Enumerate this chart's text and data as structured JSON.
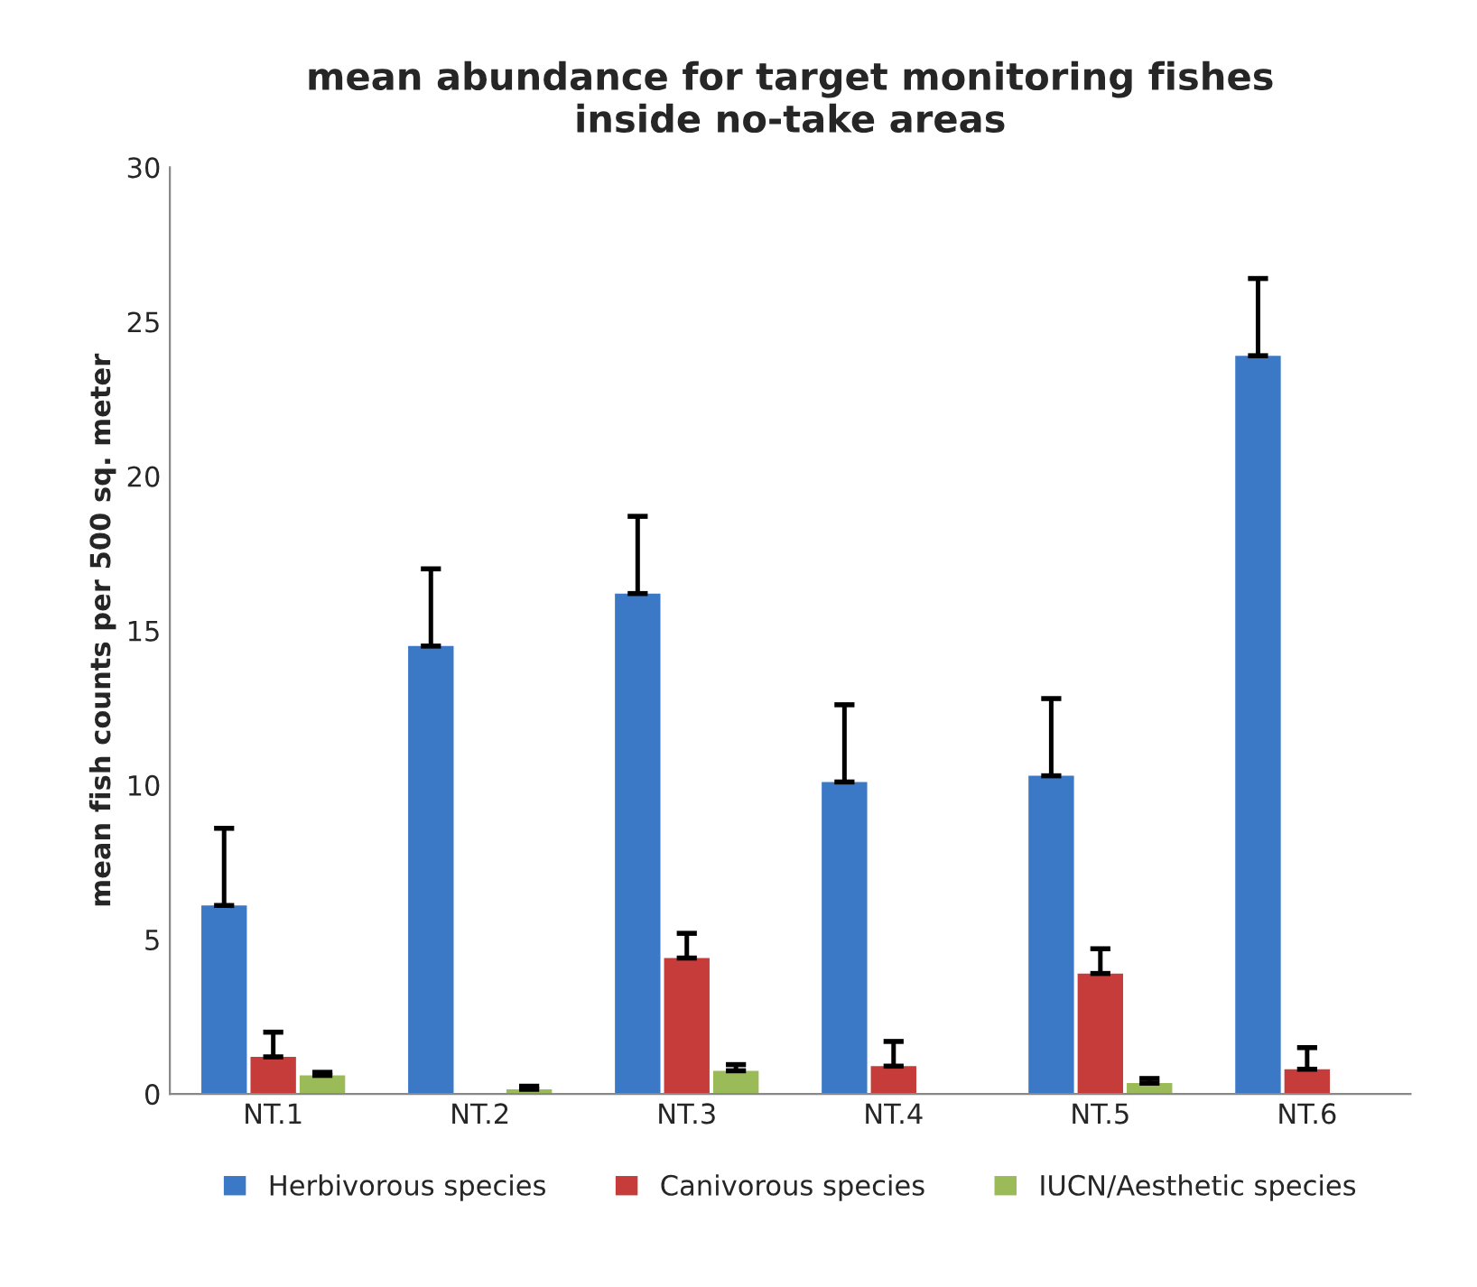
{
  "chart_data": {
    "type": "bar",
    "title": "mean abundance for target monitoring fishes\ninside no-take areas",
    "ylabel": "mean fish counts per 500 sq. meter",
    "categories": [
      "NT.1",
      "NT.2",
      "NT.3",
      "NT.4",
      "NT.5",
      "NT.6"
    ],
    "series": [
      {
        "name": "Herbivorous species",
        "color": "#3b78c6",
        "values": [
          6.1,
          14.5,
          16.2,
          10.1,
          10.3,
          23.9
        ],
        "errors": [
          [
            6.1,
            8.6
          ],
          [
            14.5,
            17.0
          ],
          [
            16.2,
            18.7
          ],
          [
            10.1,
            12.6
          ],
          [
            10.3,
            12.8
          ],
          [
            23.9,
            26.4
          ]
        ]
      },
      {
        "name": "Canivorous species",
        "color": "#c63c3a",
        "values": [
          1.2,
          null,
          4.4,
          0.9,
          3.9,
          0.8
        ],
        "errors": [
          [
            1.2,
            2.0
          ],
          null,
          [
            4.4,
            5.2
          ],
          [
            0.9,
            1.7
          ],
          [
            3.9,
            4.7
          ],
          [
            0.8,
            1.5
          ]
        ]
      },
      {
        "name": "IUCN/Aesthetic species",
        "color": "#9bbb59",
        "values": [
          0.6,
          0.15,
          0.75,
          null,
          0.35,
          null
        ],
        "errors": [
          [
            0.6,
            0.7
          ],
          [
            0.15,
            0.25
          ],
          [
            0.75,
            0.95
          ],
          null,
          [
            0.35,
            0.5
          ],
          null
        ]
      }
    ],
    "ylim": [
      0,
      30
    ],
    "yticks": [
      0,
      5,
      10,
      15,
      20,
      25,
      30
    ],
    "grid": false,
    "legend": "bottom"
  }
}
